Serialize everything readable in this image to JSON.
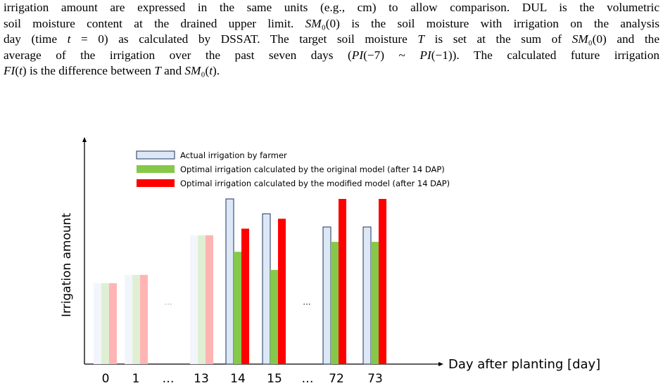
{
  "paragraph": {
    "lines": [
      "irrigation amount are expressed in the same units (e.g., cm) to allow comparison. DUL is the volumetric",
      "soil moisture content at the drained upper limit. SM₀(0) is the soil moisture with irrigation on the analysis",
      "day (time t = 0) as calculated by DSSAT. The target soil moisture T is set at the sum of SM₀(0) and the",
      "average of the irrigation over the past seven days (PI(−7) ~ PI(−1)). The calculated future irrigation",
      "FI(t) is the difference between T and SM₀(t)."
    ]
  },
  "chart_data": {
    "type": "bar",
    "title": "",
    "xlabel": "Day after planting [day]",
    "ylabel": "Irrigation amount",
    "categories": [
      "0",
      "1",
      "…",
      "13",
      "14",
      "15",
      "…",
      "72",
      "73"
    ],
    "ellipsis_between_groups": "···",
    "series": [
      {
        "name": "Actual irrigation by farmer",
        "color": "#dce8f6",
        "values": [
          0.49,
          0.54,
          null,
          0.78,
          1.0,
          0.91,
          null,
          0.83,
          0.83
        ]
      },
      {
        "name": "Optimal irrigation calculated by the original model (after 14 DAP)",
        "color": "#86c84a",
        "values": [
          0.49,
          0.54,
          null,
          0.78,
          0.68,
          0.57,
          null,
          0.74,
          0.74
        ]
      },
      {
        "name": "Optimal irrigation calculated by the modified model (after 14 DAP)",
        "color": "#ff0000",
        "values": [
          0.49,
          0.54,
          null,
          0.78,
          0.82,
          0.88,
          null,
          1.0,
          1.0
        ]
      }
    ],
    "faded_categories": [
      "0",
      "1",
      "13"
    ],
    "legend_position": "top-left",
    "grid": false,
    "ylim": [
      0,
      1.1
    ]
  }
}
